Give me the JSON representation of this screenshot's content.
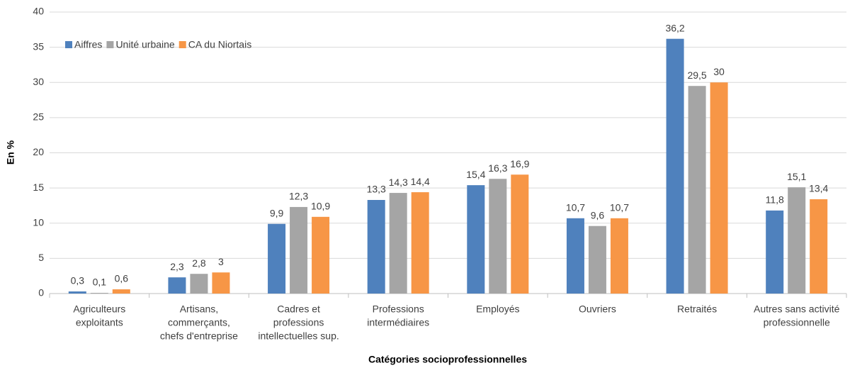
{
  "chart_data": {
    "type": "bar",
    "categories": [
      [
        "Agriculteurs",
        "exploitants"
      ],
      [
        "Artisans,",
        "commerçants,",
        "chefs d'entreprise"
      ],
      [
        "Cadres et",
        "professions",
        "intellectuelles sup."
      ],
      [
        "Professions",
        "intermédiaires"
      ],
      [
        "Employés"
      ],
      [
        "Ouvriers"
      ],
      [
        "Retraités"
      ],
      [
        "Autres sans activité",
        "professionnelle"
      ]
    ],
    "series": [
      {
        "name": "Aiffres",
        "color": "#4f81bd",
        "values": [
          0.3,
          2.3,
          9.9,
          13.3,
          15.4,
          10.7,
          36.2,
          11.8
        ],
        "value_labels": [
          "0,3",
          "2,3",
          "9,9",
          "13,3",
          "15,4",
          "10,7",
          "36,2",
          "11,8"
        ]
      },
      {
        "name": "Unité urbaine",
        "color": "#a5a5a5",
        "values": [
          0.1,
          2.8,
          12.3,
          14.3,
          16.3,
          9.6,
          29.5,
          15.1
        ],
        "value_labels": [
          "0,1",
          "2,8",
          "12,3",
          "14,3",
          "16,3",
          "9,6",
          "29,5",
          "15,1"
        ]
      },
      {
        "name": "CA du Niortais",
        "color": "#f79646",
        "values": [
          0.6,
          3,
          10.9,
          14.4,
          16.9,
          10.7,
          30,
          13.4
        ],
        "value_labels": [
          "0,6",
          "3",
          "10,9",
          "14,4",
          "16,9",
          "10,7",
          "30",
          "13,4"
        ]
      }
    ],
    "ylim": [
      0,
      40
    ],
    "yticks": [
      0,
      5,
      10,
      15,
      20,
      25,
      30,
      35,
      40
    ],
    "grid": true,
    "y_label": "En %",
    "x_label": "Catégories socioprofessionnelles",
    "legend": "top-left"
  }
}
